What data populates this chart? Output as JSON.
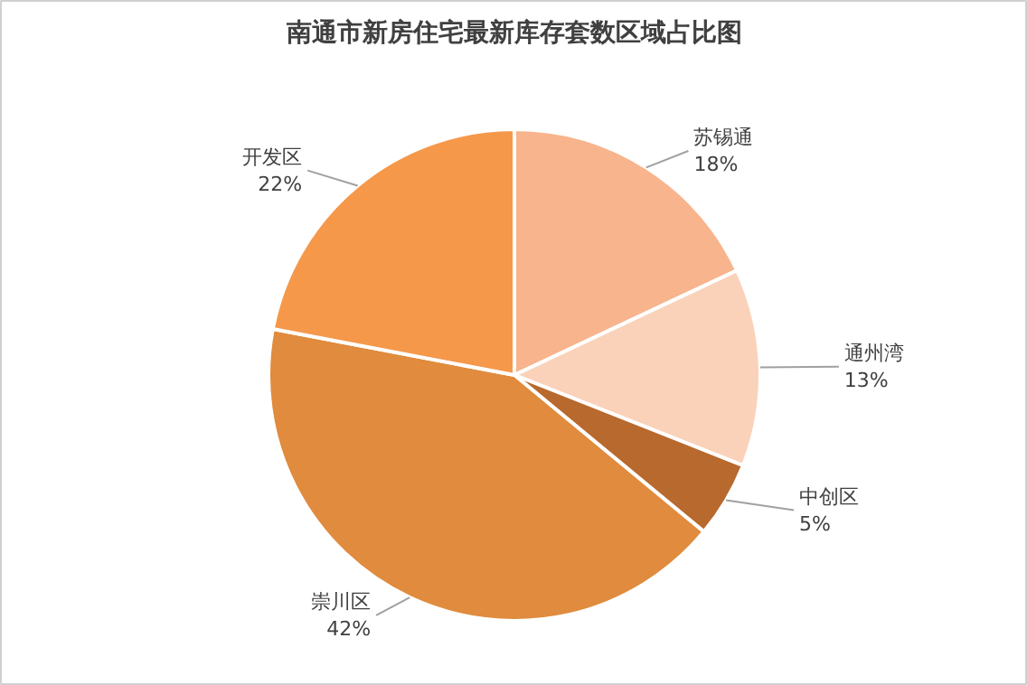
{
  "chart_data": {
    "type": "pie",
    "title": "南通市新房住宅最新库存套数区域占比图",
    "categories": [
      "苏锡通",
      "通州湾",
      "中创区",
      "崇川区",
      "开发区"
    ],
    "values": [
      18,
      13,
      5,
      42,
      22
    ],
    "value_labels": [
      "18%",
      "13%",
      "5%",
      "42%",
      "22%"
    ],
    "colors": [
      "#f8b48c",
      "#fad2ba",
      "#b8692e",
      "#e08b3d",
      "#f5984a"
    ]
  }
}
